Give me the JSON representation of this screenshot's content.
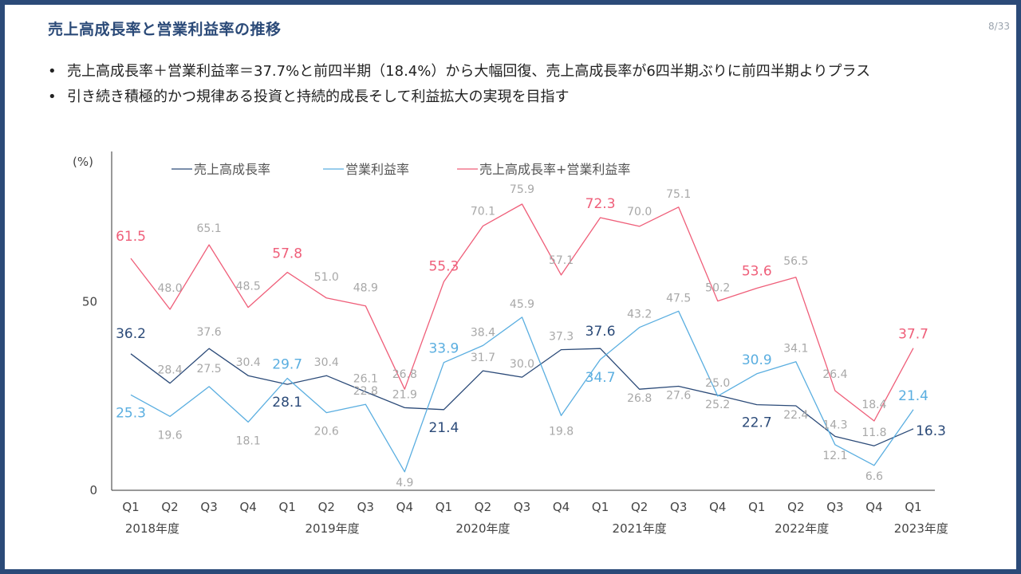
{
  "header": {
    "title": "売上高成長率と営業利益率の推移",
    "page_number": "8/33"
  },
  "bullets": [
    "売上高成長率＋営業利益率＝37.7%と前四半期（18.4%）から大幅回復、売上高成長率が6四半期ぶりに前四半期よりプラス",
    "引き続き積極的かつ規律ある投資と持続的成長そして利益拡大の実現を目指す"
  ],
  "bullet_symbol": "•",
  "colors": {
    "frame": "#2b4a78",
    "title": "#2b4a78",
    "series_growth": "#2b4a78",
    "series_margin": "#5aaee0",
    "series_sum": "#ef5e79",
    "label_gray": "#a8a8a8"
  },
  "chart_data": {
    "type": "line",
    "ylabel": "(%)",
    "ylim": [
      0,
      80
    ],
    "yticks": [
      0,
      50
    ],
    "categories": [
      "Q1",
      "Q2",
      "Q3",
      "Q4",
      "Q1",
      "Q2",
      "Q3",
      "Q4",
      "Q1",
      "Q2",
      "Q3",
      "Q4",
      "Q1",
      "Q2",
      "Q3",
      "Q4",
      "Q1",
      "Q2",
      "Q3",
      "Q4",
      "Q1"
    ],
    "groups": [
      {
        "label": "2018年度"
      },
      {
        "label": "2019年度"
      },
      {
        "label": "2020年度"
      },
      {
        "label": "2021年度"
      },
      {
        "label": "2022年度"
      },
      {
        "label": "2023年度"
      }
    ],
    "legend_position": "top",
    "series": [
      {
        "name": "売上高成長率",
        "values": [
          36.2,
          28.4,
          37.6,
          30.4,
          28.1,
          30.4,
          26.1,
          21.9,
          21.4,
          31.7,
          30.0,
          37.3,
          37.6,
          26.8,
          27.6,
          25.2,
          22.7,
          22.4,
          14.3,
          11.8,
          16.3
        ]
      },
      {
        "name": "営業利益率",
        "values": [
          25.3,
          19.6,
          27.5,
          18.1,
          29.7,
          20.6,
          22.8,
          4.9,
          33.9,
          38.4,
          45.9,
          19.8,
          34.7,
          43.2,
          47.5,
          25.0,
          30.9,
          34.1,
          12.1,
          6.6,
          21.4
        ]
      },
      {
        "name": "売上高成長率+営業利益率",
        "values": [
          61.5,
          48.0,
          65.1,
          48.5,
          57.8,
          51.0,
          48.9,
          26.8,
          55.3,
          70.1,
          75.9,
          57.1,
          72.3,
          70.0,
          75.1,
          50.2,
          53.6,
          56.5,
          26.4,
          18.4,
          37.7
        ]
      }
    ]
  }
}
